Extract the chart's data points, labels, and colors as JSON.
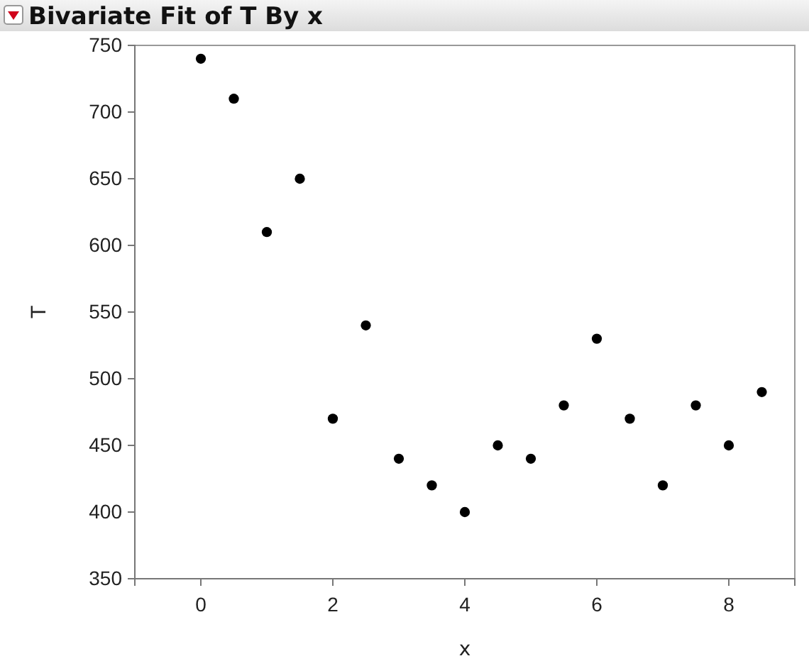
{
  "chart_data": {
    "type": "scatter",
    "title": "Bivariate Fit of T By x",
    "xlabel": "x",
    "ylabel": "T",
    "x": [
      0,
      0.5,
      1,
      1.5,
      2,
      2.5,
      3,
      3.5,
      4,
      4.5,
      5,
      5.5,
      6,
      6.5,
      7,
      7.5,
      8,
      8.5
    ],
    "values": [
      740,
      710,
      610,
      650,
      470,
      540,
      440,
      420,
      400,
      450,
      440,
      480,
      530,
      470,
      420,
      480,
      450,
      490
    ],
    "color": "#000000",
    "marker": "circle",
    "xlim": [
      -1,
      9
    ],
    "xticks": [
      0,
      2,
      4,
      6,
      8
    ],
    "ylim": [
      350,
      750
    ],
    "yticks": [
      350,
      400,
      450,
      500,
      550,
      600,
      650,
      700,
      750
    ]
  }
}
